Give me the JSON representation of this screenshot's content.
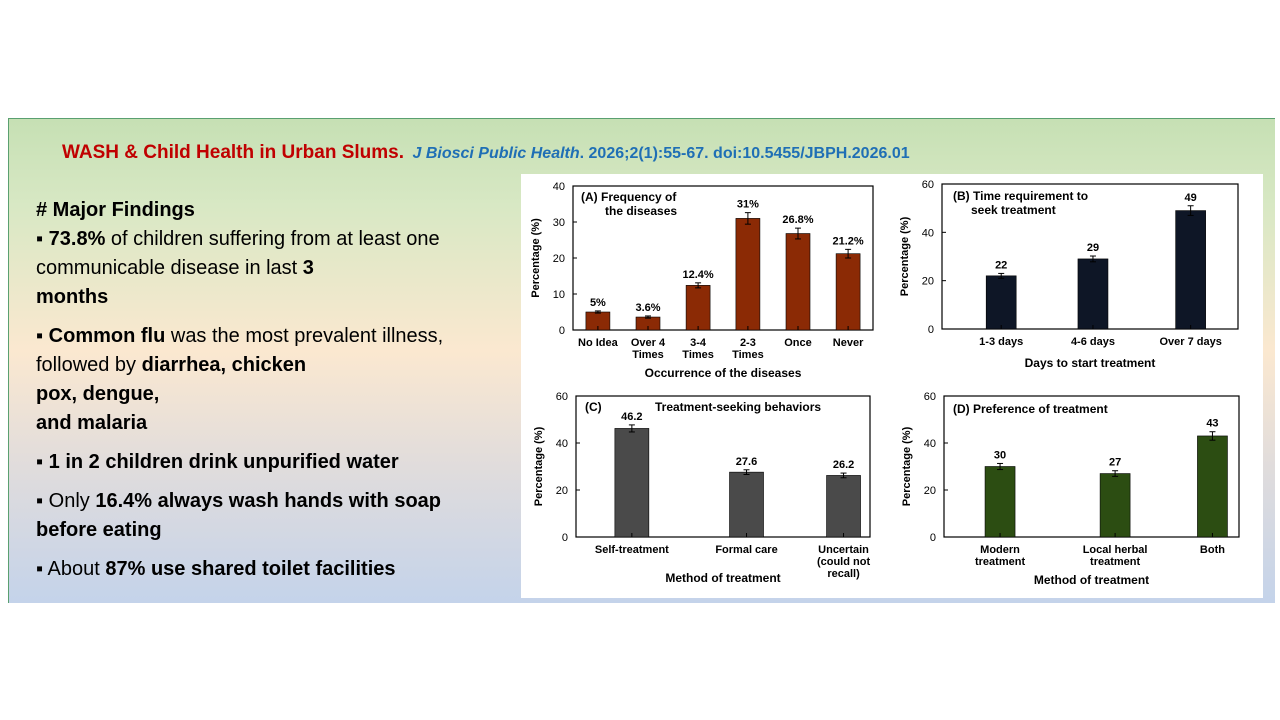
{
  "header": {
    "title": "WASH & Child Health in Urban Slums.",
    "journal": "J Biosci Public Health",
    "citation": ". 2026;2(1):55-67. doi:10.5455/JBPH.2026.01"
  },
  "findings": {
    "heading": "# Major Findings",
    "f1": {
      "bullet": "▪ ",
      "pct": "73.8%",
      "text": " of children suffering from at least one communicable disease in last ",
      "months_num": "3",
      "months_word": "months"
    },
    "f2": {
      "bullet": "▪ ",
      "flu": "Common flu",
      "text1": " was the most prevalent illness, followed by ",
      "line1": "diarrhea, chicken",
      "line2": "pox, dengue,",
      "line3": "and malaria"
    },
    "f3": {
      "text": "▪ 1 in 2 children drink unpurified water"
    },
    "f4": {
      "pre": "▪ Only ",
      "bold": "16.4% always wash hands with soap before eating"
    },
    "f5": {
      "pre": "▪ About ",
      "pct": "87%",
      "bold": " use shared toilet facilities"
    }
  },
  "colors": {
    "title_red": "#c00000",
    "journal_blue": "#1f6fb5",
    "bar_a": "#8b2a05",
    "bar_b": "#0e1626",
    "bar_c": "#4a4a4a",
    "bar_d": "#2c4d12"
  },
  "chart_data": [
    {
      "id": "A",
      "type": "bar",
      "title_line1": "(A)  Frequency of",
      "title_line2": "the diseases",
      "categories": [
        [
          "No Idea"
        ],
        [
          "Over 4",
          "Times"
        ],
        [
          "3-4",
          "Times"
        ],
        [
          "2-3",
          "Times"
        ],
        [
          "Once"
        ],
        [
          "Never"
        ]
      ],
      "values": [
        5,
        3.6,
        12.4,
        31,
        26.8,
        21.2
      ],
      "errors": [
        0.3,
        0.3,
        0.7,
        1.6,
        1.5,
        1.2
      ],
      "value_labels": [
        "5%",
        "3.6%",
        "12.4%",
        "31%",
        "26.8%",
        "21.2%"
      ],
      "xlabel": "Occurrence of the diseases",
      "ylabel": "Percentage (%)",
      "ylim": [
        0,
        40
      ],
      "yticks": [
        0,
        10,
        20,
        30,
        40
      ],
      "color_key": "bar_a"
    },
    {
      "id": "B",
      "type": "bar",
      "title_line1": "(B) Time requirement to",
      "title_line2": "seek treatment",
      "categories": [
        [
          "1-3 days"
        ],
        [
          "4-6 days"
        ],
        [
          "Over 7 days"
        ]
      ],
      "values": [
        22,
        29,
        49
      ],
      "errors": [
        1,
        1.2,
        2
      ],
      "value_labels": [
        "22",
        "29",
        "49"
      ],
      "xlabel": "Days to start treatment",
      "ylabel": "Percentage (%)",
      "ylim": [
        0,
        60
      ],
      "yticks": [
        0,
        20,
        40,
        60
      ],
      "color_key": "bar_b"
    },
    {
      "id": "C",
      "type": "bar",
      "title_line1": "(C)",
      "title_line2": "Treatment-seeking behaviors",
      "categories": [
        [
          "Self-treatment"
        ],
        [
          "Formal care"
        ],
        [
          "Uncertain",
          "(could not",
          "recall)"
        ]
      ],
      "values": [
        46.2,
        27.6,
        26.2
      ],
      "errors": [
        1.5,
        1,
        1
      ],
      "value_labels": [
        "46.2",
        "27.6",
        "26.2"
      ],
      "xlabel": "Method of treatment",
      "ylabel": "Percentage (%)",
      "ylim": [
        0,
        60
      ],
      "yticks": [
        0,
        20,
        40,
        60
      ],
      "color_key": "bar_c"
    },
    {
      "id": "D",
      "type": "bar",
      "title_line1": "(D)  Preference of treatment",
      "title_line2": "",
      "categories": [
        [
          "Modern",
          "treatment"
        ],
        [
          "Local herbal",
          "treatment"
        ],
        [
          "Both"
        ]
      ],
      "values": [
        30,
        27,
        43
      ],
      "errors": [
        1.3,
        1.2,
        1.8
      ],
      "value_labels": [
        "30",
        "27",
        "43"
      ],
      "xlabel": "Method of treatment",
      "ylabel": "Percentage (%)",
      "ylim": [
        0,
        60
      ],
      "yticks": [
        0,
        20,
        40,
        60
      ],
      "color_key": "bar_d"
    }
  ]
}
